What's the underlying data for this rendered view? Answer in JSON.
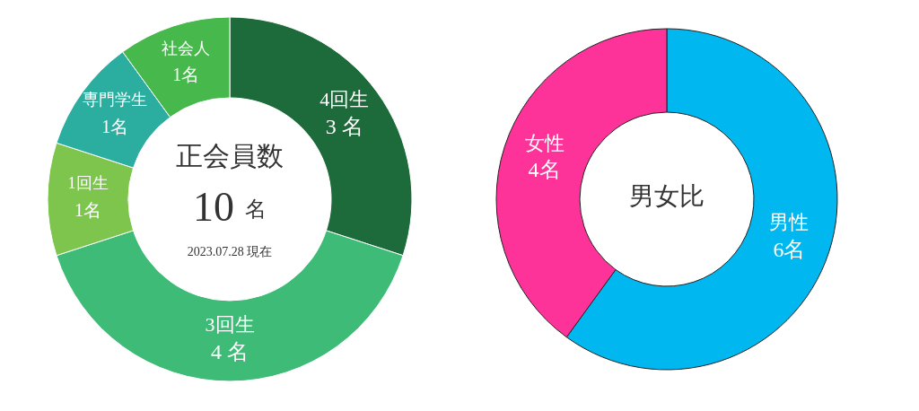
{
  "chart_data": [
    {
      "type": "donut",
      "title": "正会員数",
      "categories": [
        "4回生",
        "3回生",
        "1回生",
        "専門学生",
        "社会人"
      ],
      "values": [
        3,
        4,
        1,
        1,
        1
      ],
      "colors": [
        "#1d6a3a",
        "#3dbb77",
        "#7ec54e",
        "#2bae9f",
        "#47b84b"
      ],
      "value_labels": [
        "3 名",
        "4 名",
        "1名",
        "1名",
        "1名"
      ],
      "annotations": [
        "10 名",
        "2023.07.28 現在"
      ]
    },
    {
      "type": "donut",
      "title": "男女比",
      "categories": [
        "男性",
        "女性"
      ],
      "values": [
        6,
        4
      ],
      "colors": [
        "#00b8ef",
        "#fe3399"
      ],
      "value_labels": [
        "6名",
        "4名"
      ]
    }
  ]
}
